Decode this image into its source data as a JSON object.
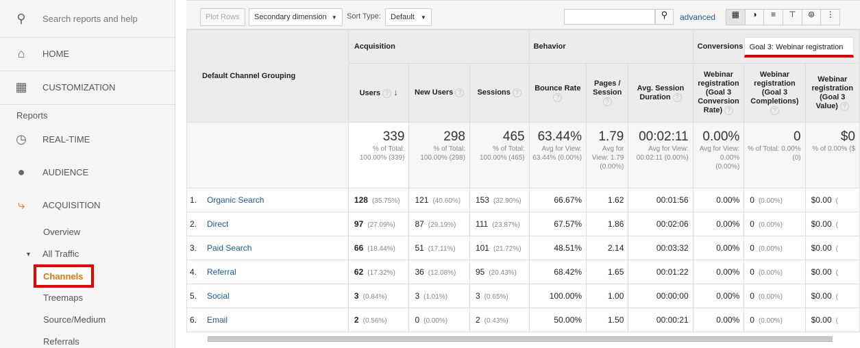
{
  "sidebar": {
    "search_placeholder": "Search reports and help",
    "home": "HOME",
    "customization": "CUSTOMIZATION",
    "reports_label": "Reports",
    "realtime": "REAL-TIME",
    "audience": "AUDIENCE",
    "acquisition": "ACQUISITION",
    "overview": "Overview",
    "all_traffic": "All Traffic",
    "channels": "Channels",
    "treemaps": "Treemaps",
    "source_medium": "Source/Medium",
    "referrals": "Referrals",
    "accent": "#e8710a"
  },
  "toolbar": {
    "plot_rows": "Plot Rows",
    "secondary_dimension": "Secondary dimension",
    "sort_type_label": "Sort Type:",
    "sort_type_value": "Default",
    "search_value": "",
    "advanced": "advanced"
  },
  "table": {
    "dimension_header": "Default Channel Grouping",
    "groups": {
      "acquisition": "Acquisition",
      "behavior": "Behavior",
      "conversions": "Conversions",
      "goal_select": "Goal 3: Webinar registration"
    },
    "columns": [
      "Users",
      "New Users",
      "Sessions",
      "Bounce Rate",
      "Pages / Session",
      "Avg. Session Duration",
      "Webinar registration (Goal 3 Conversion Rate)",
      "Webinar registration (Goal 3 Completions)",
      "Webinar registration (Goal 3 Value)"
    ],
    "totals": [
      {
        "value": "339",
        "sub": "% of Total: 100.00% (339)"
      },
      {
        "value": "298",
        "sub": "% of Total: 100.00% (298)"
      },
      {
        "value": "465",
        "sub": "% of Total: 100.00% (465)"
      },
      {
        "value": "63.44%",
        "sub": "Avg for View: 63.44% (0.00%)"
      },
      {
        "value": "1.79",
        "sub": "Avg for View: 1.79 (0.00%)"
      },
      {
        "value": "00:02:11",
        "sub": "Avg for View: 00:02:11 (0.00%)"
      },
      {
        "value": "0.00%",
        "sub": "Avg for View: 0.00% (0.00%)"
      },
      {
        "value": "0",
        "sub": "% of Total: 0.00% (0)"
      },
      {
        "value": "$0",
        "sub": "% of 0.00% ($"
      }
    ],
    "rows": [
      {
        "n": "1.",
        "name": "Organic Search",
        "users": "128",
        "users_pct": "(35.75%)",
        "new": "121",
        "new_pct": "(40.60%)",
        "sessions": "153",
        "sessions_pct": "(32.90%)",
        "bounce": "66.67%",
        "pages": "1.62",
        "duration": "00:01:56",
        "conv": "0.00%",
        "comp": "0",
        "comp_pct": "(0.00%)",
        "value": "$0.00",
        "value_pct": "("
      },
      {
        "n": "2.",
        "name": "Direct",
        "users": "97",
        "users_pct": "(27.09%)",
        "new": "87",
        "new_pct": "(29.19%)",
        "sessions": "111",
        "sessions_pct": "(23.87%)",
        "bounce": "67.57%",
        "pages": "1.86",
        "duration": "00:02:06",
        "conv": "0.00%",
        "comp": "0",
        "comp_pct": "(0.00%)",
        "value": "$0.00",
        "value_pct": "("
      },
      {
        "n": "3.",
        "name": "Paid Search",
        "users": "66",
        "users_pct": "(18.44%)",
        "new": "51",
        "new_pct": "(17.11%)",
        "sessions": "101",
        "sessions_pct": "(21.72%)",
        "bounce": "48.51%",
        "pages": "2.14",
        "duration": "00:03:32",
        "conv": "0.00%",
        "comp": "0",
        "comp_pct": "(0.00%)",
        "value": "$0.00",
        "value_pct": "("
      },
      {
        "n": "4.",
        "name": "Referral",
        "users": "62",
        "users_pct": "(17.32%)",
        "new": "36",
        "new_pct": "(12.08%)",
        "sessions": "95",
        "sessions_pct": "(20.43%)",
        "bounce": "68.42%",
        "pages": "1.65",
        "duration": "00:01:22",
        "conv": "0.00%",
        "comp": "0",
        "comp_pct": "(0.00%)",
        "value": "$0.00",
        "value_pct": "("
      },
      {
        "n": "5.",
        "name": "Social",
        "users": "3",
        "users_pct": "(0.84%)",
        "new": "3",
        "new_pct": "(1.01%)",
        "sessions": "3",
        "sessions_pct": "(0.65%)",
        "bounce": "100.00%",
        "pages": "1.00",
        "duration": "00:00:00",
        "conv": "0.00%",
        "comp": "0",
        "comp_pct": "(0.00%)",
        "value": "$0.00",
        "value_pct": "("
      },
      {
        "n": "6.",
        "name": "Email",
        "users": "2",
        "users_pct": "(0.56%)",
        "new": "0",
        "new_pct": "(0.00%)",
        "sessions": "2",
        "sessions_pct": "(0.43%)",
        "bounce": "50.00%",
        "pages": "1.50",
        "duration": "00:00:21",
        "conv": "0.00%",
        "comp": "0",
        "comp_pct": "(0.00%)",
        "value": "$0.00",
        "value_pct": "("
      }
    ]
  }
}
